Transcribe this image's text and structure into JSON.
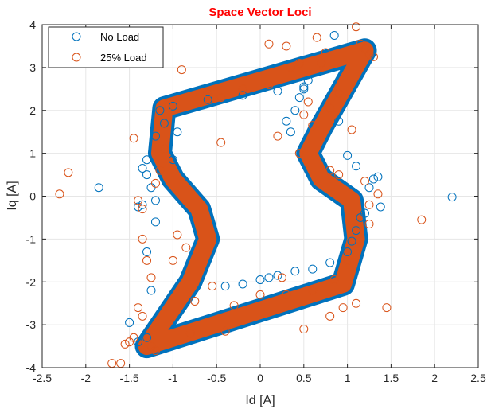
{
  "chart_data": {
    "type": "scatter",
    "title": "Space Vector Loci",
    "title_color": "#ff0000",
    "xlabel": "Id [A]",
    "ylabel": "Iq [A]",
    "xlim": [
      -2.5,
      2.5
    ],
    "ylim": [
      -4,
      4
    ],
    "xticks": [
      -2.5,
      -2,
      -1.5,
      -1,
      -0.5,
      0,
      0.5,
      1,
      1.5,
      2,
      2.5
    ],
    "xtick_labels": [
      "-2.5",
      "-2",
      "-1.5",
      "-1",
      "-0.5",
      "0",
      "0.5",
      "1",
      "1.5",
      "2",
      "2.5"
    ],
    "yticks": [
      -4,
      -3,
      -2,
      -1,
      0,
      1,
      2,
      3,
      4
    ],
    "ytick_labels": [
      "-4",
      "-3",
      "-2",
      "-1",
      "0",
      "1",
      "2",
      "3",
      "4"
    ],
    "grid": true,
    "legend_position": "top-left",
    "marker": "open-circle",
    "loop_outline": [
      [
        -1.3,
        -3.5
      ],
      [
        0.95,
        -2.05
      ],
      [
        1.1,
        -1.0
      ],
      [
        1.05,
        -0.1
      ],
      [
        0.7,
        0.4
      ],
      [
        0.55,
        1.0
      ],
      [
        0.7,
        1.6
      ],
      [
        1.2,
        3.4
      ],
      [
        -1.1,
        2.05
      ],
      [
        -1.15,
        1.0
      ],
      [
        -1.0,
        0.4
      ],
      [
        -0.7,
        -0.3
      ],
      [
        -0.6,
        -1.0
      ],
      [
        -0.8,
        -2.0
      ]
    ],
    "series": [
      {
        "name": "No Load",
        "color": "#0072bd",
        "points": [
          [
            -1.15,
            2.0
          ],
          [
            -1.0,
            2.1
          ],
          [
            -0.6,
            2.25
          ],
          [
            -0.2,
            2.35
          ],
          [
            0.2,
            2.45
          ],
          [
            0.5,
            2.5
          ],
          [
            -1.2,
            1.4
          ],
          [
            -1.3,
            0.85
          ],
          [
            -1.35,
            0.65
          ],
          [
            -1.3,
            0.5
          ],
          [
            -1.25,
            0.2
          ],
          [
            -1.2,
            -0.1
          ],
          [
            -1.35,
            -0.2
          ],
          [
            -1.4,
            -0.25
          ],
          [
            -1.2,
            -0.6
          ],
          [
            -1.3,
            -1.3
          ],
          [
            -1.25,
            -2.2
          ],
          [
            -1.5,
            -2.95
          ],
          [
            -1.3,
            -3.3
          ],
          [
            -1.4,
            -3.4
          ],
          [
            -0.4,
            -2.1
          ],
          [
            0.0,
            -1.95
          ],
          [
            0.2,
            -1.85
          ],
          [
            0.4,
            -1.75
          ],
          [
            0.6,
            -1.7
          ],
          [
            0.8,
            -1.55
          ],
          [
            1.0,
            -1.3
          ],
          [
            1.05,
            -1.05
          ],
          [
            1.1,
            -0.8
          ],
          [
            1.15,
            -0.5
          ],
          [
            1.2,
            -0.4
          ],
          [
            1.25,
            0.2
          ],
          [
            1.3,
            0.4
          ],
          [
            1.1,
            0.7
          ],
          [
            1.0,
            0.95
          ],
          [
            0.35,
            1.5
          ],
          [
            0.3,
            1.75
          ],
          [
            0.4,
            2.0
          ],
          [
            0.5,
            2.55
          ],
          [
            0.85,
            3.75
          ],
          [
            -0.2,
            -2.05
          ],
          [
            0.1,
            -1.9
          ],
          [
            -1.85,
            0.2
          ],
          [
            2.2,
            -0.02
          ],
          [
            1.38,
            -0.25
          ],
          [
            1.35,
            0.45
          ],
          [
            0.9,
            1.75
          ],
          [
            -1.0,
            0.85
          ],
          [
            -0.95,
            1.5
          ],
          [
            -1.1,
            1.7
          ],
          [
            0.45,
            2.3
          ],
          [
            0.55,
            2.7
          ]
        ]
      },
      {
        "name": "25% Load",
        "color": "#d95319",
        "points": [
          [
            -2.3,
            0.05
          ],
          [
            -2.2,
            0.55
          ],
          [
            -1.45,
            1.35
          ],
          [
            -1.4,
            -0.1
          ],
          [
            -1.35,
            -0.3
          ],
          [
            -1.7,
            -3.9
          ],
          [
            -1.6,
            -3.9
          ],
          [
            -1.55,
            -3.45
          ],
          [
            -1.5,
            -3.4
          ],
          [
            -1.45,
            -3.3
          ],
          [
            -0.9,
            2.95
          ],
          [
            -0.6,
            2.4
          ],
          [
            -0.45,
            2.3
          ],
          [
            -0.2,
            2.5
          ],
          [
            0.1,
            2.6
          ],
          [
            0.1,
            3.55
          ],
          [
            0.3,
            3.5
          ],
          [
            0.35,
            3.0
          ],
          [
            0.45,
            3.1
          ],
          [
            0.65,
            3.7
          ],
          [
            0.75,
            3.35
          ],
          [
            1.1,
            3.95
          ],
          [
            1.15,
            3.55
          ],
          [
            1.25,
            3.3
          ],
          [
            1.3,
            3.25
          ],
          [
            1.2,
            3.45
          ],
          [
            0.7,
            3.1
          ],
          [
            -0.45,
            1.25
          ],
          [
            0.2,
            1.4
          ],
          [
            0.5,
            1.9
          ],
          [
            0.8,
            0.6
          ],
          [
            0.9,
            0.5
          ],
          [
            1.2,
            0.35
          ],
          [
            1.25,
            -0.2
          ],
          [
            1.25,
            -0.65
          ],
          [
            1.35,
            0.05
          ],
          [
            1.0,
            -1.5
          ],
          [
            0.95,
            -2.6
          ],
          [
            0.8,
            -2.8
          ],
          [
            0.5,
            -3.1
          ],
          [
            1.1,
            -2.5
          ],
          [
            1.45,
            -2.6
          ],
          [
            1.85,
            -0.55
          ],
          [
            -0.4,
            -3.15
          ],
          [
            -0.8,
            -3.2
          ],
          [
            -1.25,
            -3.5
          ],
          [
            -1.2,
            -3.6
          ],
          [
            -1.35,
            -2.8
          ],
          [
            -1.4,
            -2.6
          ],
          [
            -1.35,
            -1.0
          ],
          [
            -1.3,
            -1.5
          ],
          [
            -1.25,
            -1.9
          ],
          [
            -1.0,
            -1.5
          ],
          [
            -0.95,
            -0.9
          ],
          [
            -0.85,
            -1.2
          ],
          [
            -1.2,
            0.3
          ],
          [
            -1.15,
            0.6
          ],
          [
            -1.1,
            1.1
          ],
          [
            -1.05,
            2.1
          ],
          [
            0.45,
            1.0
          ],
          [
            0.6,
            1.65
          ],
          [
            0.8,
            2.05
          ],
          [
            0.9,
            2.4
          ],
          [
            0.55,
            2.2
          ],
          [
            1.05,
            1.55
          ],
          [
            -0.75,
            -2.45
          ],
          [
            -0.3,
            -2.55
          ],
          [
            0.0,
            -2.3
          ],
          [
            0.3,
            -2.3
          ],
          [
            0.6,
            -2.2
          ],
          [
            0.85,
            -1.95
          ],
          [
            0.25,
            -1.9
          ],
          [
            -0.55,
            -2.1
          ]
        ]
      }
    ]
  }
}
